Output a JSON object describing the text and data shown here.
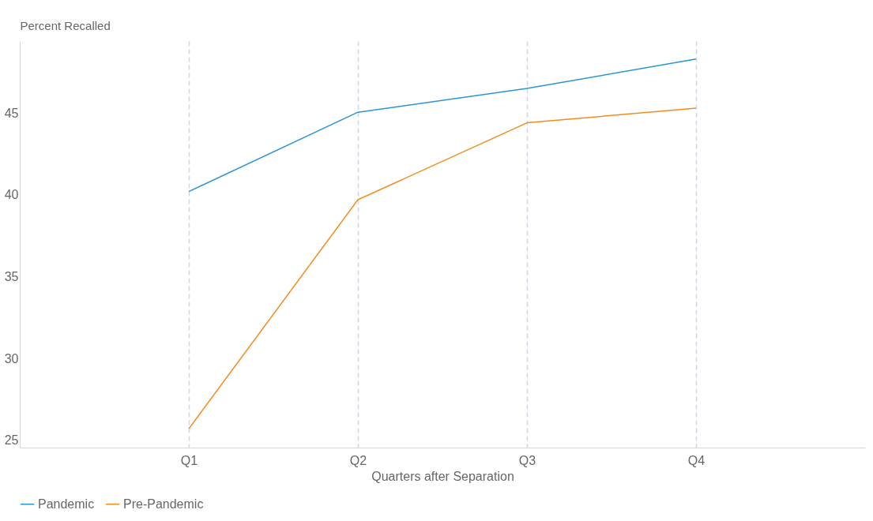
{
  "chart_data": {
    "type": "line",
    "ylabel": "Percent Recalled",
    "xlabel": "Quarters after Separation",
    "categories": [
      "Q1",
      "Q2",
      "Q3",
      "Q4"
    ],
    "series": [
      {
        "name": "Pandemic",
        "color": "#2b94d4",
        "values": [
          40.2,
          45.05,
          46.5,
          48.3
        ]
      },
      {
        "name": "Pre-Pandemic",
        "color": "#f28c1e",
        "values": [
          25.7,
          39.7,
          44.4,
          45.3
        ]
      }
    ],
    "ylim": [
      24.55,
      49.4
    ],
    "yticks": [
      25,
      30,
      35,
      40,
      45
    ],
    "grid": "x",
    "legend": "bottom",
    "marker": "none",
    "line_style": "solid"
  }
}
